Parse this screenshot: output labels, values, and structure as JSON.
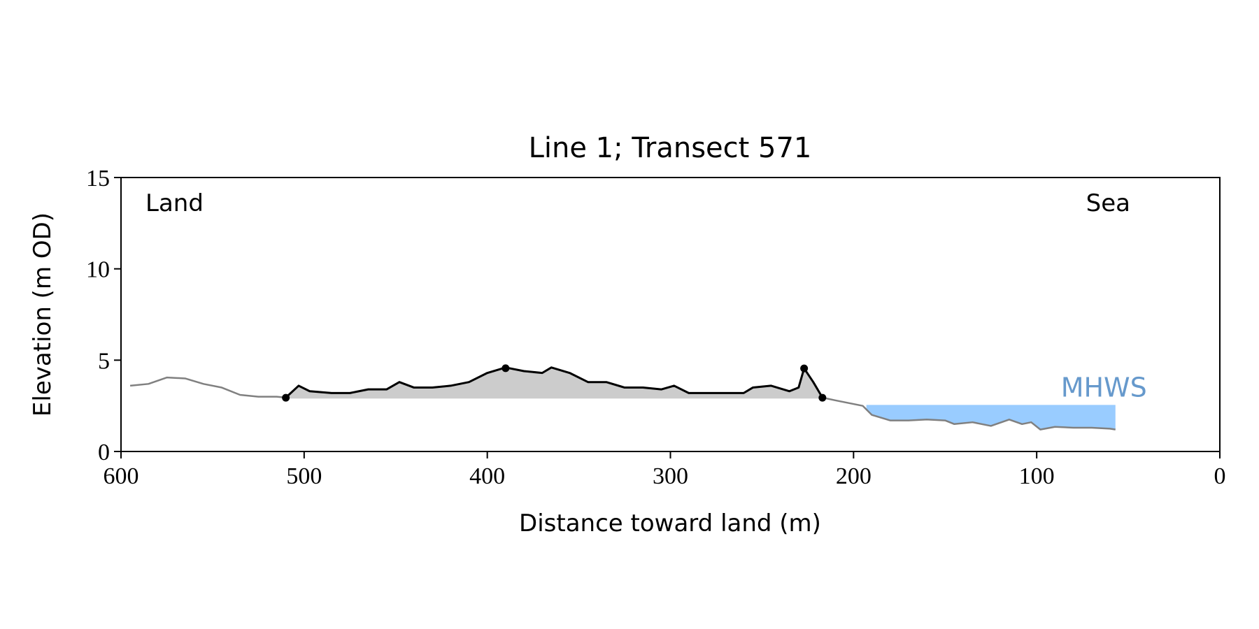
{
  "chart_data": {
    "type": "line",
    "title": "Line 1; Transect 571",
    "xlabel": "Distance toward land (m)",
    "ylabel": "Elevation (m OD)",
    "annotations": {
      "land": "Land",
      "sea": "Sea"
    },
    "xlim": [
      600,
      0
    ],
    "xticks": [
      600,
      500,
      400,
      300,
      200,
      100,
      0
    ],
    "ylim": [
      0,
      15
    ],
    "yticks": [
      0,
      5,
      10,
      15
    ],
    "series": [
      {
        "color": "#808080",
        "x": [
          595,
          585,
          575,
          565,
          555,
          545,
          535,
          525,
          515,
          510,
          503,
          497,
          485,
          475,
          465,
          455,
          448,
          440,
          430,
          420,
          410,
          400,
          390,
          380,
          370,
          365,
          355,
          345,
          335,
          325,
          315,
          305,
          298,
          290,
          280,
          270,
          260,
          255,
          245,
          235,
          230,
          227,
          222,
          217,
          210,
          200,
          195,
          190,
          180,
          170,
          160,
          150,
          145,
          135,
          125,
          115,
          108,
          103,
          98,
          90,
          80,
          70,
          60,
          57
        ],
        "values": [
          3.6,
          3.7,
          4.05,
          4.0,
          3.7,
          3.5,
          3.1,
          3.0,
          3.0,
          2.95,
          3.6,
          3.3,
          3.2,
          3.2,
          3.4,
          3.4,
          3.8,
          3.5,
          3.5,
          3.6,
          3.8,
          4.3,
          4.6,
          4.4,
          4.3,
          4.6,
          4.3,
          3.8,
          3.8,
          3.5,
          3.5,
          3.4,
          3.6,
          3.2,
          3.2,
          3.2,
          3.2,
          3.5,
          3.6,
          3.3,
          3.5,
          4.55,
          3.8,
          2.95,
          2.8,
          2.6,
          2.5,
          2.0,
          1.7,
          1.7,
          1.75,
          1.7,
          1.5,
          1.6,
          1.4,
          1.75,
          1.5,
          1.6,
          1.2,
          1.35,
          1.3,
          1.3,
          1.25,
          1.2
        ]
      },
      {
        "color": "#000000",
        "fill": "#cccccc",
        "fill_level": 2.9,
        "x": [
          510,
          503,
          497,
          485,
          475,
          465,
          455,
          448,
          440,
          430,
          420,
          410,
          400,
          390,
          380,
          370,
          365,
          355,
          345,
          335,
          325,
          315,
          305,
          298,
          290,
          280,
          270,
          260,
          255,
          245,
          235,
          230,
          227,
          222,
          217
        ],
        "values": [
          2.95,
          3.6,
          3.3,
          3.2,
          3.2,
          3.4,
          3.4,
          3.8,
          3.5,
          3.5,
          3.6,
          3.8,
          4.3,
          4.6,
          4.4,
          4.3,
          4.6,
          4.3,
          3.8,
          3.8,
          3.5,
          3.5,
          3.4,
          3.6,
          3.2,
          3.2,
          3.2,
          3.2,
          3.5,
          3.6,
          3.3,
          3.5,
          4.55,
          3.8,
          2.95
        ]
      }
    ],
    "points": {
      "color": "#000000",
      "x": [
        510,
        390,
        227,
        217
      ],
      "values": [
        2.94,
        4.56,
        4.55,
        2.94
      ]
    },
    "mhws": {
      "label": "MHWS",
      "level": 2.55,
      "xlim": [
        193,
        57
      ],
      "color": "#99ccff",
      "label_color": "#6699cc"
    }
  }
}
